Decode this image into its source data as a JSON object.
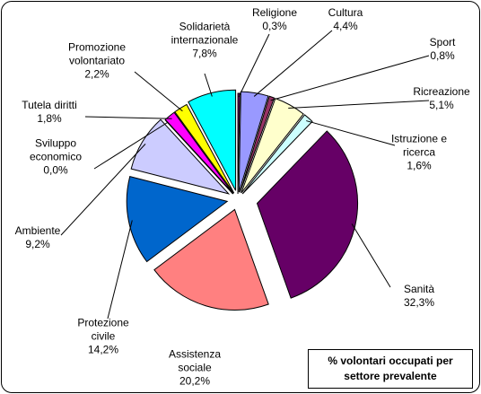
{
  "chart_data": {
    "type": "pie",
    "title": "% volontari occupati per settore prevalente",
    "categories": [
      "Religione",
      "Cultura",
      "Sport",
      "Ricreazione",
      "Istruzione e ricerca",
      "Sanità",
      "Assistenza sociale",
      "Protezione civile",
      "Ambiente",
      "Sviluppo economico",
      "Tutela diritti",
      "Promozione volontariato",
      "Solidarietà internazionale"
    ],
    "values": [
      0.3,
      4.4,
      0.8,
      5.1,
      1.6,
      32.3,
      20.2,
      14.2,
      9.2,
      0.0,
      1.8,
      2.2,
      7.8
    ],
    "value_labels": [
      "0,3%",
      "4,4%",
      "0,8%",
      "5,1%",
      "1,6%",
      "32,3%",
      "20,2%",
      "14,2%",
      "9,2%",
      "0,0%",
      "1,8%",
      "2,2%",
      "7,8%"
    ],
    "colors": [
      "#800080",
      "#9999ff",
      "#993366",
      "#ffffcc",
      "#ccffff",
      "#660066",
      "#ff8080",
      "#0066cc",
      "#ccccff",
      "#000080",
      "#ff00ff",
      "#ffff00",
      "#00ffff"
    ]
  }
}
